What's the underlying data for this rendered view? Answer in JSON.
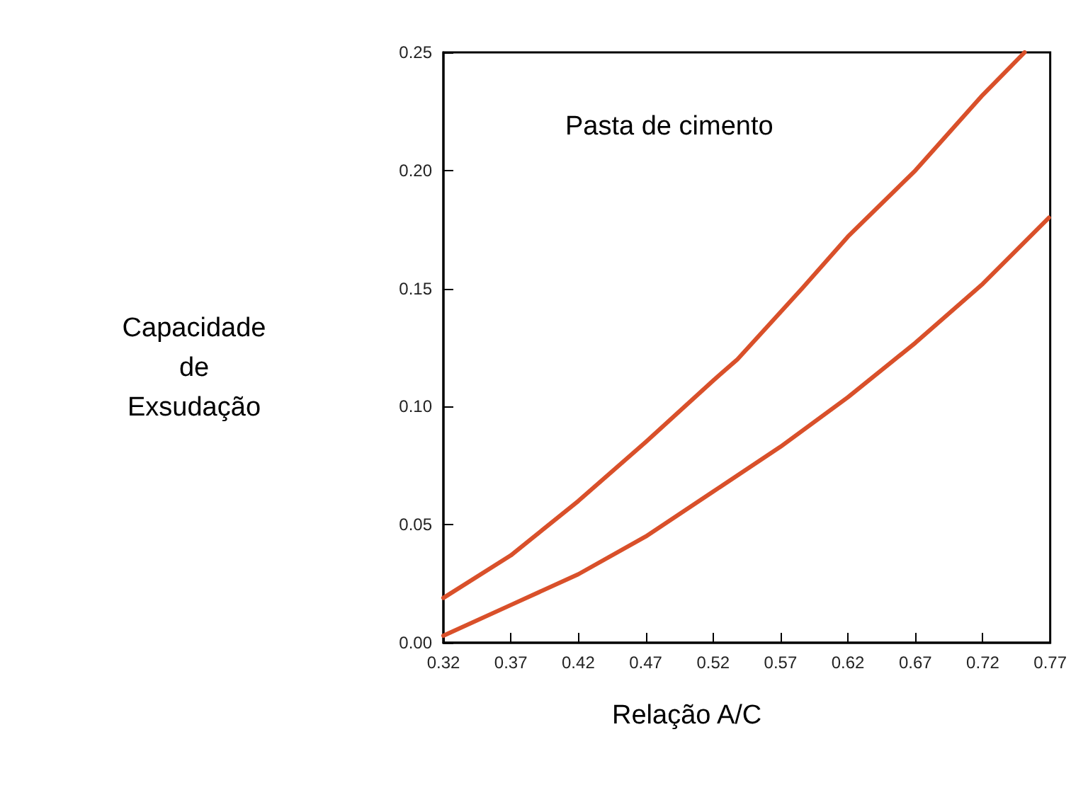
{
  "chart_data": {
    "type": "line",
    "ylabel": "Capacidade\nde\nExsudação",
    "xlabel": "Relação A/C",
    "annotations": [
      "Pasta de cimento"
    ],
    "xlim": [
      0.32,
      0.77
    ],
    "xticks": [
      0.32,
      0.37,
      0.42,
      0.47,
      0.52,
      0.57,
      0.62,
      0.67,
      0.72,
      0.77
    ],
    "ylim": [
      0,
      0.25
    ],
    "yticks": [
      {
        "value": 0,
        "label": "0.00"
      },
      0.05,
      {
        "value": 0.1,
        "label": "0.10"
      },
      0.15,
      {
        "value": 0.2,
        "label": "0.20"
      },
      0.25
    ],
    "grid": false,
    "marker": "none",
    "line_style": "solid",
    "series": [
      {
        "color": "#d9502a",
        "x": [
          0.32,
          0.37,
          0.42,
          0.47,
          0.52,
          0.538,
          0.586,
          0.62,
          0.67,
          0.72,
          0.751
        ],
        "values": [
          0.019,
          0.037,
          0.06,
          0.085,
          0.111,
          0.12,
          0.15,
          0.172,
          0.2,
          0.232,
          0.25
        ]
      },
      {
        "color": "#d9502a",
        "x": [
          0.32,
          0.37,
          0.42,
          0.47,
          0.52,
          0.57,
          0.62,
          0.67,
          0.72,
          0.769
        ],
        "values": [
          0.003,
          0.016,
          0.029,
          0.045,
          0.064,
          0.083,
          0.104,
          0.127,
          0.152,
          0.18
        ]
      }
    ]
  }
}
